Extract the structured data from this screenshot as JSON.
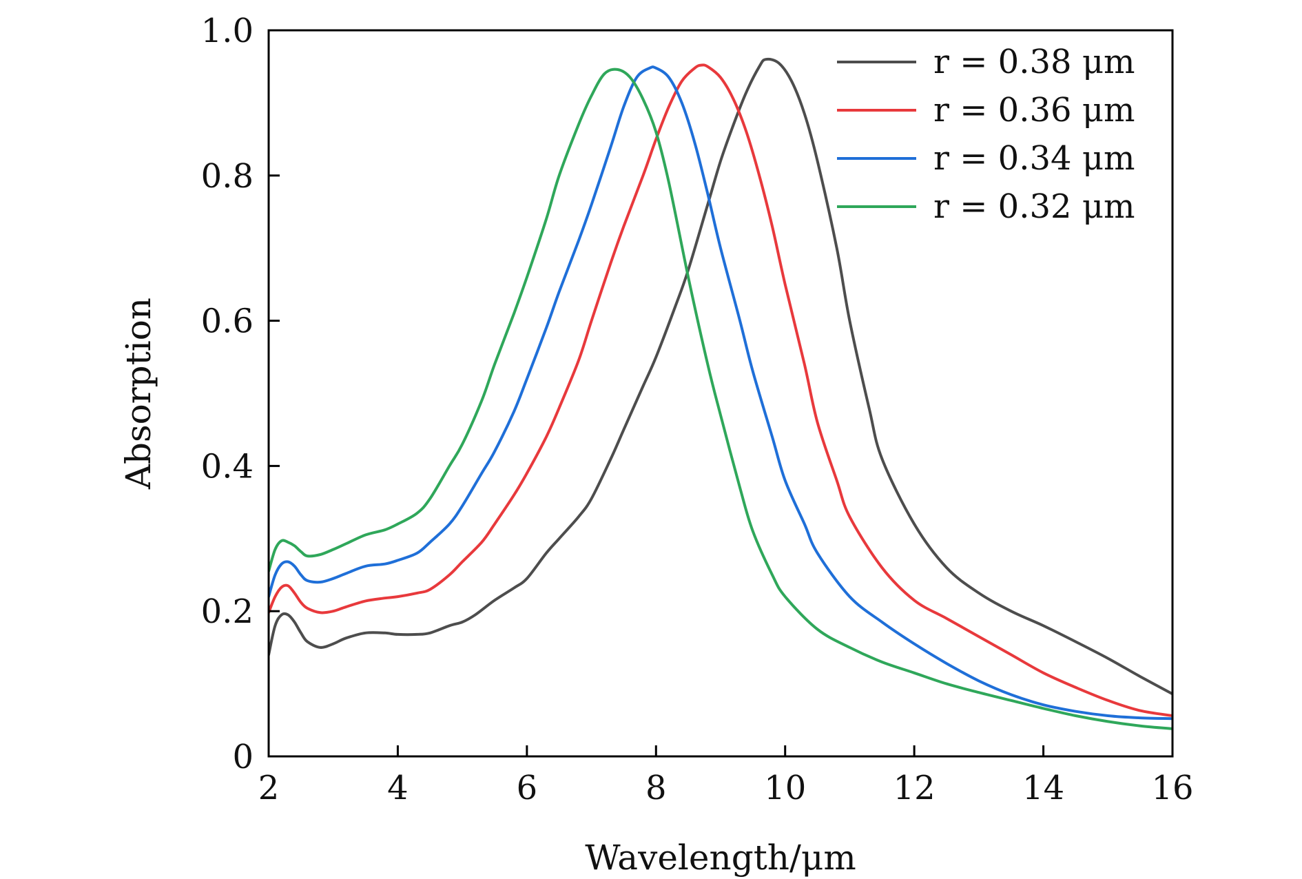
{
  "chart_data": {
    "type": "line",
    "title": "",
    "xlabel": "Wavelength/μm",
    "ylabel": "Absorption",
    "xlim": [
      2,
      16
    ],
    "ylim": [
      0,
      1.0
    ],
    "xticks": [
      2,
      4,
      6,
      8,
      10,
      12,
      14,
      16
    ],
    "xtick_labels": [
      "2",
      "4",
      "6",
      "8",
      "10",
      "12",
      "14",
      "16"
    ],
    "yticks": [
      0,
      0.2,
      0.4,
      0.6,
      0.8,
      1.0
    ],
    "ytick_labels": [
      "0",
      "0.2",
      "0.4",
      "0.6",
      "0.8",
      "1.0"
    ],
    "grid": false,
    "legend_position": "top-right",
    "series": [
      {
        "name": "r = 0.38 μm",
        "color": "#4d4d4d",
        "x": [
          2.0,
          2.1,
          2.2,
          2.3,
          2.4,
          2.5,
          2.6,
          2.8,
          3.0,
          3.2,
          3.5,
          3.8,
          4.0,
          4.3,
          4.5,
          4.8,
          5.0,
          5.2,
          5.5,
          5.8,
          6.0,
          6.3,
          6.5,
          6.8,
          7.0,
          7.3,
          7.5,
          7.8,
          8.0,
          8.3,
          8.5,
          8.8,
          9.0,
          9.2,
          9.4,
          9.6,
          9.7,
          9.9,
          10.1,
          10.3,
          10.5,
          10.8,
          11.0,
          11.3,
          11.5,
          12.0,
          12.5,
          13.0,
          13.5,
          14.0,
          14.5,
          15.0,
          15.5,
          16.0
        ],
        "y": [
          0.14,
          0.18,
          0.195,
          0.195,
          0.185,
          0.17,
          0.158,
          0.15,
          0.155,
          0.163,
          0.17,
          0.17,
          0.168,
          0.168,
          0.17,
          0.18,
          0.185,
          0.195,
          0.215,
          0.232,
          0.245,
          0.28,
          0.3,
          0.33,
          0.355,
          0.41,
          0.45,
          0.51,
          0.55,
          0.62,
          0.67,
          0.76,
          0.82,
          0.87,
          0.915,
          0.95,
          0.96,
          0.955,
          0.93,
          0.885,
          0.82,
          0.7,
          0.6,
          0.48,
          0.41,
          0.32,
          0.26,
          0.225,
          0.2,
          0.18,
          0.158,
          0.135,
          0.11,
          0.086
        ]
      },
      {
        "name": "r = 0.36 μm",
        "color": "#e8393c",
        "x": [
          2.0,
          2.1,
          2.2,
          2.3,
          2.4,
          2.5,
          2.6,
          2.8,
          3.0,
          3.2,
          3.5,
          3.8,
          4.0,
          4.3,
          4.5,
          4.8,
          5.0,
          5.3,
          5.5,
          5.8,
          6.0,
          6.3,
          6.5,
          6.8,
          7.0,
          7.3,
          7.5,
          7.8,
          8.0,
          8.2,
          8.4,
          8.6,
          8.7,
          8.8,
          9.0,
          9.2,
          9.4,
          9.6,
          9.8,
          10.0,
          10.3,
          10.5,
          10.8,
          11.0,
          11.5,
          12.0,
          12.5,
          13.0,
          13.5,
          14.0,
          14.5,
          15.0,
          15.5,
          16.0
        ],
        "y": [
          0.198,
          0.22,
          0.233,
          0.235,
          0.225,
          0.212,
          0.204,
          0.198,
          0.2,
          0.206,
          0.214,
          0.218,
          0.22,
          0.225,
          0.23,
          0.25,
          0.268,
          0.295,
          0.32,
          0.36,
          0.39,
          0.44,
          0.48,
          0.545,
          0.6,
          0.68,
          0.73,
          0.8,
          0.85,
          0.895,
          0.93,
          0.948,
          0.952,
          0.95,
          0.935,
          0.905,
          0.86,
          0.8,
          0.73,
          0.65,
          0.54,
          0.46,
          0.38,
          0.33,
          0.26,
          0.215,
          0.19,
          0.165,
          0.14,
          0.115,
          0.095,
          0.077,
          0.063,
          0.056
        ]
      },
      {
        "name": "r = 0.34 μm",
        "color": "#1f6fd8",
        "x": [
          2.0,
          2.1,
          2.2,
          2.3,
          2.4,
          2.5,
          2.6,
          2.8,
          3.0,
          3.2,
          3.5,
          3.8,
          4.0,
          4.3,
          4.5,
          4.8,
          5.0,
          5.3,
          5.5,
          5.8,
          6.0,
          6.3,
          6.5,
          6.8,
          7.0,
          7.3,
          7.5,
          7.7,
          7.9,
          8.0,
          8.2,
          8.4,
          8.6,
          8.8,
          9.0,
          9.3,
          9.5,
          9.8,
          10.0,
          10.3,
          10.5,
          11.0,
          11.5,
          12.0,
          12.5,
          13.0,
          13.5,
          14.0,
          14.5,
          15.0,
          15.5,
          16.0
        ],
        "y": [
          0.22,
          0.25,
          0.265,
          0.268,
          0.262,
          0.25,
          0.242,
          0.24,
          0.245,
          0.252,
          0.262,
          0.265,
          0.27,
          0.28,
          0.295,
          0.32,
          0.345,
          0.39,
          0.42,
          0.475,
          0.52,
          0.59,
          0.64,
          0.71,
          0.76,
          0.84,
          0.895,
          0.935,
          0.948,
          0.948,
          0.935,
          0.9,
          0.845,
          0.775,
          0.7,
          0.6,
          0.53,
          0.44,
          0.38,
          0.32,
          0.28,
          0.22,
          0.185,
          0.155,
          0.128,
          0.104,
          0.085,
          0.071,
          0.062,
          0.056,
          0.053,
          0.052
        ]
      },
      {
        "name": "r = 0.32 μm",
        "color": "#2fa75a",
        "x": [
          2.0,
          2.1,
          2.2,
          2.3,
          2.4,
          2.5,
          2.6,
          2.8,
          3.0,
          3.2,
          3.5,
          3.8,
          4.0,
          4.3,
          4.5,
          4.8,
          5.0,
          5.3,
          5.5,
          5.8,
          6.0,
          6.3,
          6.5,
          6.8,
          7.0,
          7.2,
          7.4,
          7.6,
          7.8,
          8.0,
          8.2,
          8.5,
          8.8,
          9.0,
          9.3,
          9.5,
          9.8,
          10.0,
          10.5,
          11.0,
          11.5,
          12.0,
          12.5,
          13.0,
          13.5,
          14.0,
          14.5,
          15.0,
          15.5,
          16.0
        ],
        "y": [
          0.255,
          0.285,
          0.297,
          0.295,
          0.29,
          0.282,
          0.276,
          0.278,
          0.285,
          0.293,
          0.305,
          0.312,
          0.32,
          0.335,
          0.355,
          0.4,
          0.43,
          0.49,
          0.54,
          0.61,
          0.66,
          0.74,
          0.8,
          0.87,
          0.91,
          0.94,
          0.946,
          0.935,
          0.905,
          0.86,
          0.79,
          0.66,
          0.54,
          0.47,
          0.37,
          0.31,
          0.25,
          0.22,
          0.175,
          0.15,
          0.13,
          0.115,
          0.1,
          0.088,
          0.077,
          0.066,
          0.056,
          0.048,
          0.042,
          0.038
        ]
      }
    ]
  }
}
